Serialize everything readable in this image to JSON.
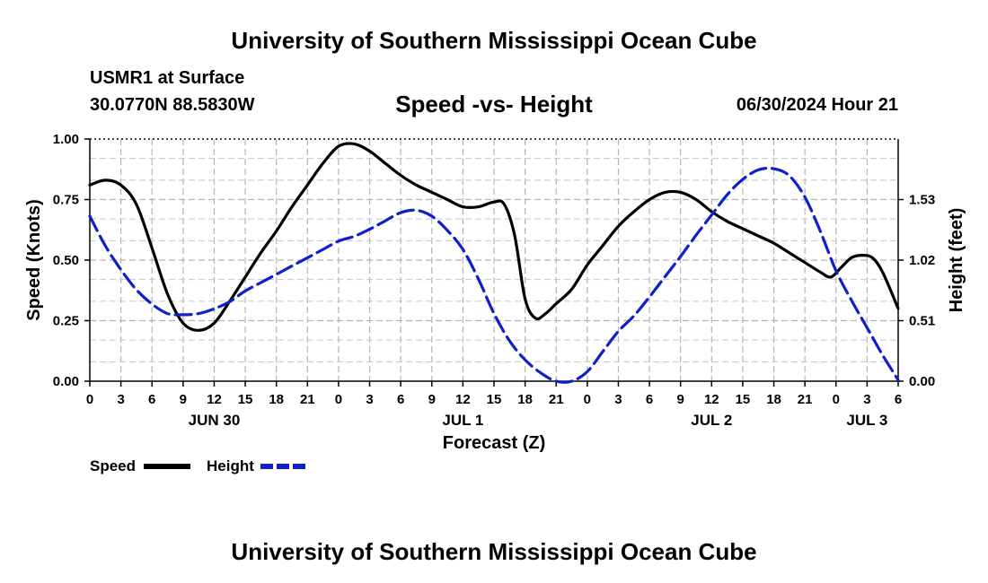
{
  "header": {
    "title": "University of Southern Mississippi Ocean Cube",
    "station": "USMR1 at Surface",
    "coords": "30.0770N  88.5830W",
    "subtitle": "Speed -vs- Height",
    "datetime": "06/30/2024 Hour 21"
  },
  "footer": {
    "title": "University of Southern Mississippi Ocean Cube"
  },
  "chart_data": {
    "type": "line",
    "xlabel": "Forecast (Z)",
    "ylabel": "Speed (Knots)",
    "y2label": "Height (feet)",
    "x_range_hours": [
      0,
      78
    ],
    "x_ticks": [
      {
        "h": 0,
        "label": "0"
      },
      {
        "h": 3,
        "label": "3"
      },
      {
        "h": 6,
        "label": "6"
      },
      {
        "h": 9,
        "label": "9"
      },
      {
        "h": 12,
        "label": "12"
      },
      {
        "h": 15,
        "label": "15"
      },
      {
        "h": 18,
        "label": "18"
      },
      {
        "h": 21,
        "label": "21"
      },
      {
        "h": 24,
        "label": "0"
      },
      {
        "h": 27,
        "label": "3"
      },
      {
        "h": 30,
        "label": "6"
      },
      {
        "h": 33,
        "label": "9"
      },
      {
        "h": 36,
        "label": "12"
      },
      {
        "h": 39,
        "label": "15"
      },
      {
        "h": 42,
        "label": "18"
      },
      {
        "h": 45,
        "label": "21"
      },
      {
        "h": 48,
        "label": "0"
      },
      {
        "h": 51,
        "label": "3"
      },
      {
        "h": 54,
        "label": "6"
      },
      {
        "h": 57,
        "label": "9"
      },
      {
        "h": 60,
        "label": "12"
      },
      {
        "h": 63,
        "label": "15"
      },
      {
        "h": 66,
        "label": "18"
      },
      {
        "h": 69,
        "label": "21"
      },
      {
        "h": 72,
        "label": "0"
      },
      {
        "h": 75,
        "label": "3"
      },
      {
        "h": 78,
        "label": "6"
      }
    ],
    "day_labels": [
      {
        "h": 12,
        "label": "JUN 30"
      },
      {
        "h": 36,
        "label": "JUL 1"
      },
      {
        "h": 60,
        "label": "JUL 2"
      },
      {
        "h": 75,
        "label": "JUL 3"
      }
    ],
    "y_range": [
      0,
      1
    ],
    "y_ticks": [
      {
        "v": 0,
        "label": "0.00"
      },
      {
        "v": 0.25,
        "label": "0.25"
      },
      {
        "v": 0.5,
        "label": "0.50"
      },
      {
        "v": 0.75,
        "label": "0.75"
      },
      {
        "v": 1,
        "label": "1.00"
      }
    ],
    "y2_range": [
      0,
      2.04
    ],
    "y2_ticks": [
      {
        "v": 0,
        "label": "0.00"
      },
      {
        "v": 0.51,
        "label": "0.51"
      },
      {
        "v": 1.02,
        "label": "1.02"
      },
      {
        "v": 1.53,
        "label": "1.53"
      }
    ],
    "y_grid_minor": [
      0.08,
      0.17,
      0.33,
      0.42,
      0.58,
      0.67,
      0.83,
      0.92
    ],
    "series": [
      {
        "name": "Speed",
        "axis": "left",
        "color": "#000000",
        "dash": "solid",
        "points": [
          [
            0,
            0.81
          ],
          [
            1.5,
            0.83
          ],
          [
            3,
            0.81
          ],
          [
            4.5,
            0.73
          ],
          [
            6,
            0.55
          ],
          [
            7.5,
            0.36
          ],
          [
            9,
            0.24
          ],
          [
            10.5,
            0.21
          ],
          [
            12,
            0.24
          ],
          [
            13.5,
            0.33
          ],
          [
            15,
            0.43
          ],
          [
            16.5,
            0.53
          ],
          [
            18,
            0.62
          ],
          [
            19.5,
            0.72
          ],
          [
            21,
            0.81
          ],
          [
            22.5,
            0.9
          ],
          [
            24,
            0.97
          ],
          [
            25.5,
            0.98
          ],
          [
            27,
            0.95
          ],
          [
            28.5,
            0.9
          ],
          [
            30,
            0.85
          ],
          [
            31.5,
            0.81
          ],
          [
            33,
            0.78
          ],
          [
            34.5,
            0.75
          ],
          [
            36,
            0.72
          ],
          [
            37.5,
            0.72
          ],
          [
            39,
            0.74
          ],
          [
            40,
            0.73
          ],
          [
            41,
            0.6
          ],
          [
            42,
            0.34
          ],
          [
            43,
            0.26
          ],
          [
            44,
            0.28
          ],
          [
            45,
            0.32
          ],
          [
            46.5,
            0.38
          ],
          [
            48,
            0.48
          ],
          [
            49.5,
            0.56
          ],
          [
            51,
            0.64
          ],
          [
            52.5,
            0.7
          ],
          [
            54,
            0.75
          ],
          [
            55.5,
            0.78
          ],
          [
            57,
            0.78
          ],
          [
            58.5,
            0.75
          ],
          [
            60,
            0.7
          ],
          [
            61.5,
            0.66
          ],
          [
            63,
            0.63
          ],
          [
            64.5,
            0.6
          ],
          [
            66,
            0.57
          ],
          [
            67.5,
            0.53
          ],
          [
            69,
            0.49
          ],
          [
            70.5,
            0.45
          ],
          [
            71.5,
            0.43
          ],
          [
            72.5,
            0.47
          ],
          [
            73.5,
            0.51
          ],
          [
            74.5,
            0.52
          ],
          [
            75.5,
            0.51
          ],
          [
            76.5,
            0.45
          ],
          [
            78,
            0.3
          ]
        ]
      },
      {
        "name": "Height",
        "axis": "right",
        "color": "#1020c8",
        "dash": "dashed",
        "points": [
          [
            0,
            1.39
          ],
          [
            1.5,
            1.14
          ],
          [
            3,
            0.94
          ],
          [
            4.5,
            0.77
          ],
          [
            6,
            0.65
          ],
          [
            7.5,
            0.57
          ],
          [
            9,
            0.56
          ],
          [
            10.5,
            0.57
          ],
          [
            12,
            0.61
          ],
          [
            13.5,
            0.67
          ],
          [
            15,
            0.76
          ],
          [
            16.5,
            0.83
          ],
          [
            18,
            0.9
          ],
          [
            19.5,
            0.97
          ],
          [
            21,
            1.04
          ],
          [
            22.5,
            1.11
          ],
          [
            24,
            1.18
          ],
          [
            25.5,
            1.22
          ],
          [
            27,
            1.28
          ],
          [
            28.5,
            1.35
          ],
          [
            30,
            1.42
          ],
          [
            31.5,
            1.44
          ],
          [
            33,
            1.39
          ],
          [
            34.5,
            1.27
          ],
          [
            36,
            1.11
          ],
          [
            37.5,
            0.86
          ],
          [
            39,
            0.57
          ],
          [
            40.5,
            0.34
          ],
          [
            42,
            0.18
          ],
          [
            43.5,
            0.07
          ],
          [
            45,
            0.0
          ],
          [
            46.5,
            0.0
          ],
          [
            48,
            0.08
          ],
          [
            49.5,
            0.25
          ],
          [
            51,
            0.42
          ],
          [
            52.5,
            0.55
          ],
          [
            54,
            0.71
          ],
          [
            55.5,
            0.88
          ],
          [
            57,
            1.05
          ],
          [
            58.5,
            1.23
          ],
          [
            60,
            1.4
          ],
          [
            61.5,
            1.57
          ],
          [
            63,
            1.7
          ],
          [
            64.5,
            1.78
          ],
          [
            66,
            1.79
          ],
          [
            67.5,
            1.73
          ],
          [
            69,
            1.55
          ],
          [
            70.5,
            1.26
          ],
          [
            72,
            0.93
          ],
          [
            73.5,
            0.68
          ],
          [
            75,
            0.45
          ],
          [
            76.5,
            0.22
          ],
          [
            78,
            0.01
          ]
        ]
      }
    ],
    "legend": [
      {
        "label": "Speed",
        "color": "#000000",
        "dash": "solid"
      },
      {
        "label": "Height",
        "color": "#1020c8",
        "dash": "dashed"
      }
    ],
    "legend_position": "bottom-left"
  }
}
